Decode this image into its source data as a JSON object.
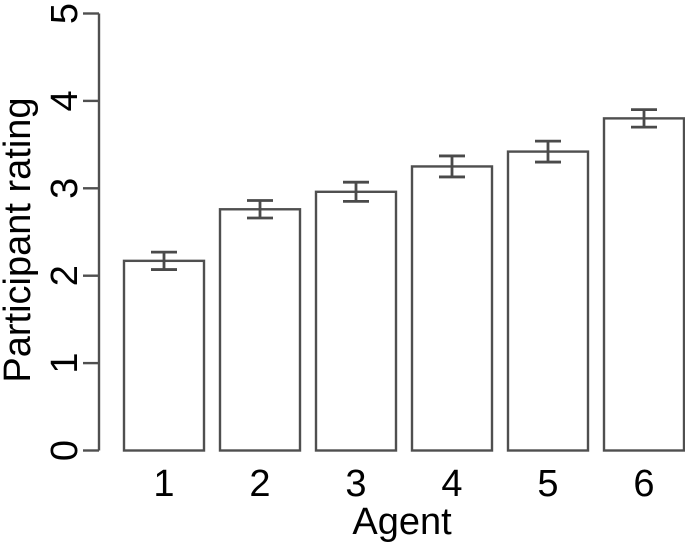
{
  "chart_data": {
    "type": "bar",
    "title": "",
    "xlabel": "Agent",
    "ylabel": "Participant rating",
    "categories": [
      "1",
      "2",
      "3",
      "4",
      "5",
      "6"
    ],
    "values": [
      2.17,
      2.76,
      2.96,
      3.25,
      3.42,
      3.8
    ],
    "errors": [
      0.1,
      0.1,
      0.11,
      0.12,
      0.12,
      0.1
    ],
    "error_bar_style": "symmetric-caps",
    "ylim": [
      0,
      5
    ],
    "yticks": [
      0,
      1,
      2,
      3,
      4,
      5
    ],
    "ytick_label_orientation": "rotated-90-ccw",
    "grid": false,
    "legend": "none",
    "bar_fill": "#ffffff",
    "bar_stroke": "#4f4f4f",
    "error_bar_color": "#4a4a4a",
    "axis_color": "#4f4f4f",
    "text_color": "#000000",
    "background": "#ffffff"
  }
}
